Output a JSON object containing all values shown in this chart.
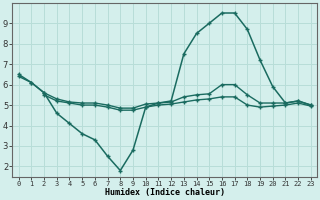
{
  "xlabel": "Humidex (Indice chaleur)",
  "background_color": "#d4efec",
  "grid_color": "#b8ddd8",
  "line_color": "#1a6b60",
  "x_values": [
    0,
    1,
    2,
    3,
    4,
    5,
    6,
    7,
    8,
    9,
    10,
    11,
    12,
    13,
    14,
    15,
    16,
    17,
    18,
    19,
    20,
    21,
    22,
    23
  ],
  "line_main": [
    6.5,
    6.1,
    5.6,
    4.6,
    4.1,
    3.6,
    3.3,
    2.5,
    1.8,
    2.8,
    4.9,
    5.1,
    5.2,
    7.5,
    8.5,
    9.0,
    9.5,
    9.5,
    8.7,
    7.2,
    5.9,
    5.1,
    5.2,
    5.0
  ],
  "line_upper": [
    6.4,
    6.1,
    5.6,
    5.3,
    5.15,
    5.1,
    5.1,
    5.0,
    4.85,
    4.85,
    5.05,
    5.1,
    5.15,
    5.4,
    5.5,
    5.55,
    6.0,
    6.0,
    5.5,
    5.1,
    5.1,
    5.1,
    5.2,
    5.0
  ],
  "line_lower": [
    null,
    null,
    5.5,
    5.2,
    5.1,
    5.0,
    5.0,
    4.9,
    4.75,
    4.75,
    4.9,
    5.0,
    5.05,
    5.15,
    5.25,
    5.3,
    5.4,
    5.4,
    5.0,
    4.9,
    4.95,
    5.0,
    5.1,
    4.95
  ],
  "xlim": [
    -0.5,
    23.5
  ],
  "ylim": [
    1.5,
    10.0
  ],
  "yticks": [
    2,
    3,
    4,
    5,
    6,
    7,
    8,
    9
  ],
  "xticks": [
    0,
    1,
    2,
    3,
    4,
    5,
    6,
    7,
    8,
    9,
    10,
    11,
    12,
    13,
    14,
    15,
    16,
    17,
    18,
    19,
    20,
    21,
    22,
    23
  ],
  "xlabel_fontsize": 6,
  "tick_fontsize_x": 5,
  "tick_fontsize_y": 6
}
